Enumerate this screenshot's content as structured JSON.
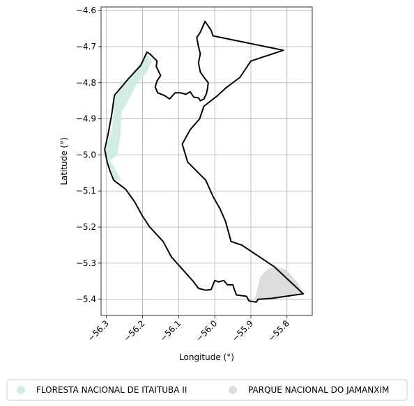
{
  "chart_data": {
    "type": "map",
    "xlabel": "Longitude (°)",
    "ylabel": "Latitude (°)",
    "xlim": [
      -56.315,
      -55.73
    ],
    "ylim": [
      -5.445,
      -4.59
    ],
    "grid": true,
    "legend_position": "bottom",
    "x_ticks": [
      {
        "value": -56.3,
        "label": "−56.3"
      },
      {
        "value": -56.2,
        "label": "−56.2"
      },
      {
        "value": -56.1,
        "label": "−56.1"
      },
      {
        "value": -56.0,
        "label": "−56.0"
      },
      {
        "value": -55.9,
        "label": "−55.9"
      },
      {
        "value": -55.8,
        "label": "−55.8"
      }
    ],
    "y_ticks": [
      {
        "value": -4.6,
        "label": "−4.6"
      },
      {
        "value": -4.7,
        "label": "−4.7"
      },
      {
        "value": -4.8,
        "label": "−4.8"
      },
      {
        "value": -4.9,
        "label": "−4.9"
      },
      {
        "value": -5.0,
        "label": "−5.0"
      },
      {
        "value": -5.1,
        "label": "−5.1"
      },
      {
        "value": -5.2,
        "label": "−5.2"
      },
      {
        "value": -5.3,
        "label": "−5.3"
      },
      {
        "value": -5.4,
        "label": "−5.4"
      }
    ],
    "series": [
      {
        "name": "FLORESTA NACIONAL DE ITAITUBA II",
        "color": "#d0ede0",
        "polygon": [
          [
            -56.188,
            -4.72
          ],
          [
            -56.175,
            -4.74
          ],
          [
            -56.19,
            -4.775
          ],
          [
            -56.215,
            -4.8
          ],
          [
            -56.245,
            -4.86
          ],
          [
            -56.258,
            -4.88
          ],
          [
            -56.262,
            -4.95
          ],
          [
            -56.27,
            -5.0
          ],
          [
            -56.29,
            -5.015
          ],
          [
            -56.275,
            -5.04
          ],
          [
            -56.258,
            -5.07
          ],
          [
            -56.278,
            -5.068
          ],
          [
            -56.292,
            -5.03
          ],
          [
            -56.302,
            -4.98
          ],
          [
            -56.285,
            -4.93
          ],
          [
            -56.277,
            -4.84
          ],
          [
            -56.24,
            -4.79
          ]
        ]
      },
      {
        "name": "PARQUE NACIONAL DO JAMANXIM",
        "color": "#dcdcdc",
        "polygon": [
          [
            -55.89,
            -5.4
          ],
          [
            -55.885,
            -5.385
          ],
          [
            -55.875,
            -5.34
          ],
          [
            -55.862,
            -5.325
          ],
          [
            -55.85,
            -5.315
          ],
          [
            -55.83,
            -5.31
          ],
          [
            -55.8,
            -5.32
          ],
          [
            -55.77,
            -5.355
          ],
          [
            -55.755,
            -5.385
          ],
          [
            -55.79,
            -5.388
          ],
          [
            -55.84,
            -5.398
          ]
        ]
      }
    ],
    "boundary": [
      [
        -56.027,
        -4.63
      ],
      [
        -56.01,
        -4.655
      ],
      [
        -56.005,
        -4.67
      ],
      [
        -55.81,
        -4.71
      ],
      [
        -55.9,
        -4.74
      ],
      [
        -55.93,
        -4.785
      ],
      [
        -55.97,
        -4.815
      ],
      [
        -55.995,
        -4.838
      ],
      [
        -56.03,
        -4.865
      ],
      [
        -56.042,
        -4.9
      ],
      [
        -56.068,
        -4.93
      ],
      [
        -56.09,
        -4.97
      ],
      [
        -56.075,
        -5.02
      ],
      [
        -56.055,
        -5.04
      ],
      [
        -56.025,
        -5.07
      ],
      [
        -56.005,
        -5.115
      ],
      [
        -55.985,
        -5.15
      ],
      [
        -55.97,
        -5.185
      ],
      [
        -55.955,
        -5.24
      ],
      [
        -55.925,
        -5.25
      ],
      [
        -55.835,
        -5.31
      ],
      [
        -55.755,
        -5.385
      ],
      [
        -55.845,
        -5.398
      ],
      [
        -55.88,
        -5.4
      ],
      [
        -55.885,
        -5.408
      ],
      [
        -55.905,
        -5.405
      ],
      [
        -55.912,
        -5.392
      ],
      [
        -55.94,
        -5.388
      ],
      [
        -55.946,
        -5.372
      ],
      [
        -55.95,
        -5.36
      ],
      [
        -55.965,
        -5.36
      ],
      [
        -55.975,
        -5.348
      ],
      [
        -55.99,
        -5.352
      ],
      [
        -56.0,
        -5.348
      ],
      [
        -56.005,
        -5.36
      ],
      [
        -56.01,
        -5.373
      ],
      [
        -56.025,
        -5.375
      ],
      [
        -56.045,
        -5.37
      ],
      [
        -56.06,
        -5.35
      ],
      [
        -56.085,
        -5.322
      ],
      [
        -56.12,
        -5.283
      ],
      [
        -56.143,
        -5.24
      ],
      [
        -56.18,
        -5.2
      ],
      [
        -56.2,
        -5.17
      ],
      [
        -56.222,
        -5.13
      ],
      [
        -56.247,
        -5.095
      ],
      [
        -56.28,
        -5.07
      ],
      [
        -56.29,
        -5.045
      ],
      [
        -56.298,
        -5.02
      ],
      [
        -56.305,
        -4.985
      ],
      [
        -56.295,
        -4.94
      ],
      [
        -56.285,
        -4.885
      ],
      [
        -56.278,
        -4.835
      ],
      [
        -56.24,
        -4.79
      ],
      [
        -56.205,
        -4.752
      ],
      [
        -56.188,
        -4.715
      ],
      [
        -56.18,
        -4.72
      ],
      [
        -56.17,
        -4.73
      ],
      [
        -56.16,
        -4.74
      ],
      [
        -56.162,
        -4.755
      ],
      [
        -56.15,
        -4.78
      ],
      [
        -56.16,
        -4.795
      ],
      [
        -56.165,
        -4.812
      ],
      [
        -56.158,
        -4.828
      ],
      [
        -56.14,
        -4.835
      ],
      [
        -56.125,
        -4.845
      ],
      [
        -56.11,
        -4.828
      ],
      [
        -56.095,
        -4.828
      ],
      [
        -56.08,
        -4.832
      ],
      [
        -56.068,
        -4.825
      ],
      [
        -56.058,
        -4.84
      ],
      [
        -56.045,
        -4.842
      ],
      [
        -56.04,
        -4.85
      ],
      [
        -56.03,
        -4.845
      ],
      [
        -56.023,
        -4.83
      ],
      [
        -56.02,
        -4.815
      ],
      [
        -56.018,
        -4.8
      ],
      [
        -56.03,
        -4.785
      ],
      [
        -56.04,
        -4.77
      ],
      [
        -56.045,
        -4.745
      ],
      [
        -56.04,
        -4.72
      ],
      [
        -56.045,
        -4.7
      ],
      [
        -56.05,
        -4.675
      ],
      [
        -56.04,
        -4.66
      ],
      [
        -56.027,
        -4.63
      ]
    ]
  }
}
